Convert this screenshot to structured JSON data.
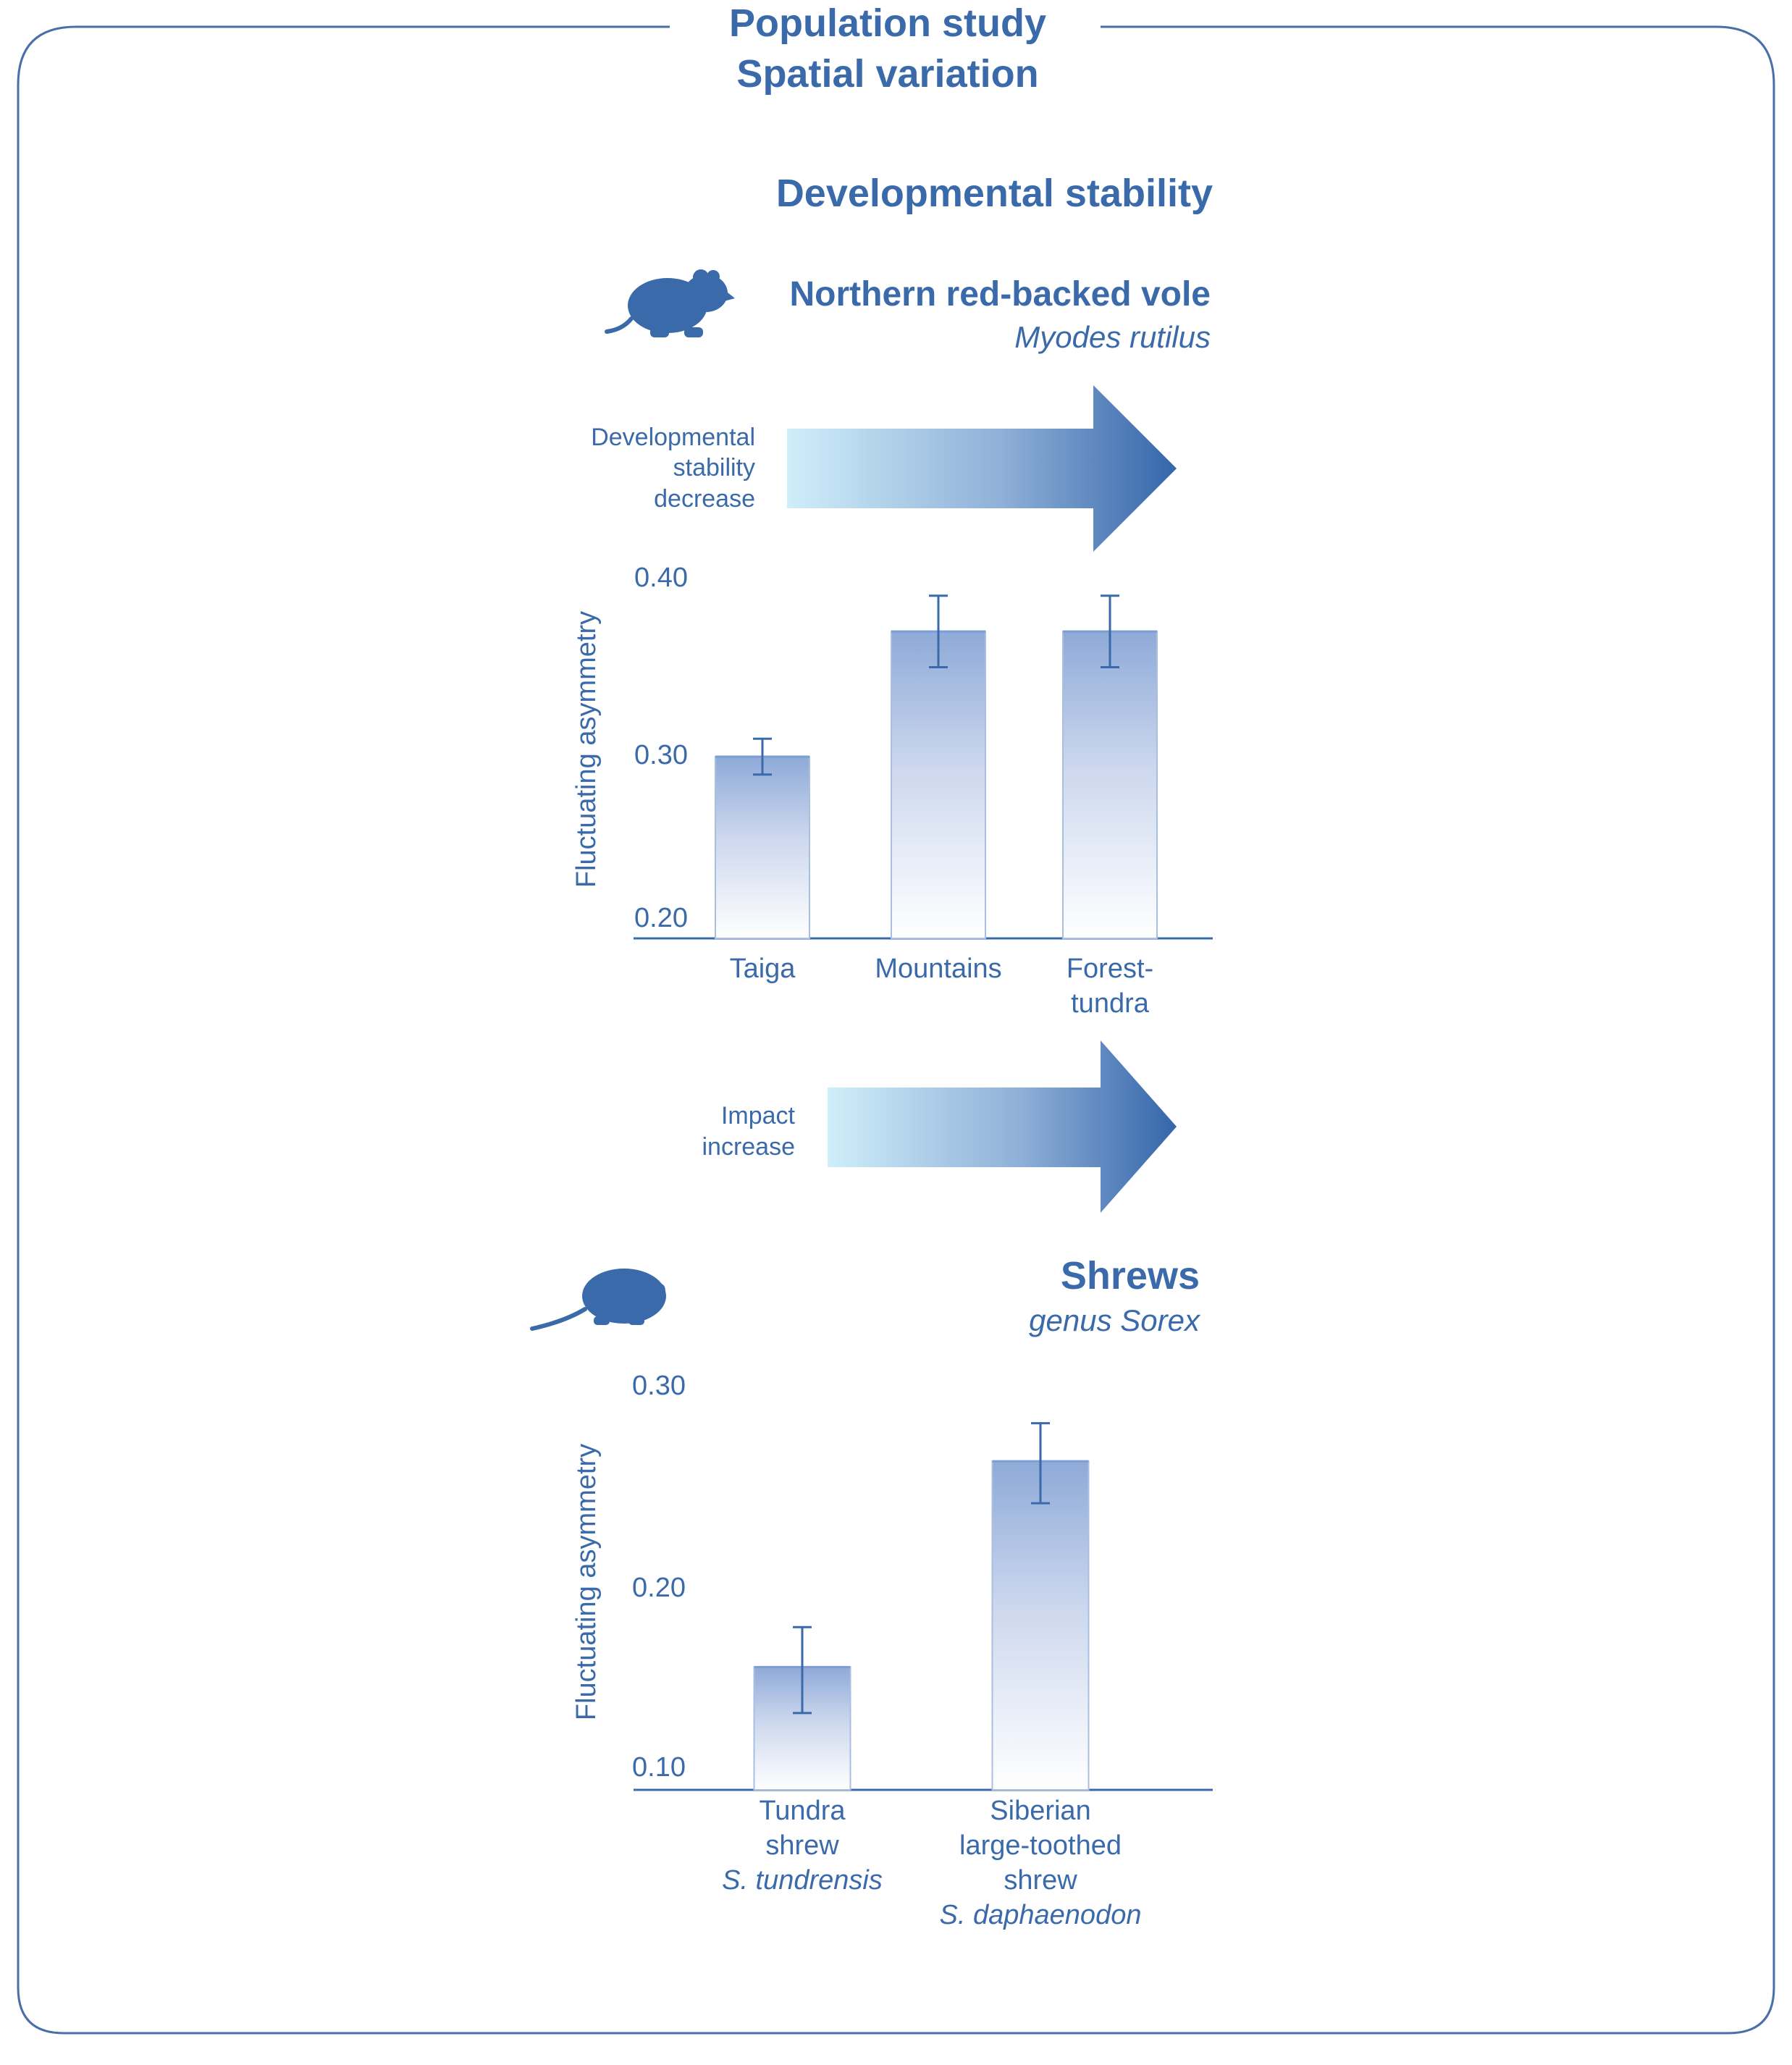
{
  "header": {
    "title_line1": "Population study",
    "title_line2": "Spatial variation"
  },
  "section_title": "Developmental stability",
  "vole": {
    "common_name": "Northern red-backed vole",
    "latin_name": "Myodes rutilus",
    "icon": "vole-icon"
  },
  "shrew": {
    "common_name": "Shrews",
    "latin_name": "genus Sorex",
    "icon": "shrew-icon"
  },
  "arrow1": {
    "label_lines": [
      "Developmental",
      "stability",
      "decrease"
    ]
  },
  "arrow2": {
    "label_lines": [
      "Impact",
      "increase"
    ]
  },
  "colors": {
    "primary": "#3a6aaa",
    "bar_top": "#8eaad8",
    "bar_bottom": "#ffffff",
    "arrow_start": "#cfeefa",
    "arrow_end": "#3566aa",
    "frame": "#4a6fa8"
  },
  "chart_data": [
    {
      "type": "bar",
      "ylabel": "Fluctuating asymmetry",
      "ylim": [
        0.2,
        0.4
      ],
      "yticks": [
        "0.20",
        "0.30",
        "0.40"
      ],
      "categories": [
        [
          "Taiga"
        ],
        [
          "Mountains"
        ],
        [
          "Forest-",
          "tundra"
        ]
      ],
      "values": [
        0.3,
        0.37,
        0.37
      ],
      "error_low": [
        0.29,
        0.35,
        0.35
      ],
      "error_high": [
        0.31,
        0.39,
        0.39
      ]
    },
    {
      "type": "bar",
      "ylabel": "Fluctuating asymmetry",
      "ylim": [
        0.1,
        0.3
      ],
      "yticks": [
        "0.10",
        "0.20",
        "0.30"
      ],
      "categories": [
        [
          "Tundra",
          "shrew",
          "S. tundrensis"
        ],
        [
          "Siberian",
          "large-toothed",
          "shrew",
          "S. daphaenodon"
        ]
      ],
      "italic_last_line": true,
      "values": [
        0.16,
        0.263
      ],
      "error_low": [
        0.137,
        0.242
      ],
      "error_high": [
        0.18,
        0.282
      ]
    }
  ]
}
